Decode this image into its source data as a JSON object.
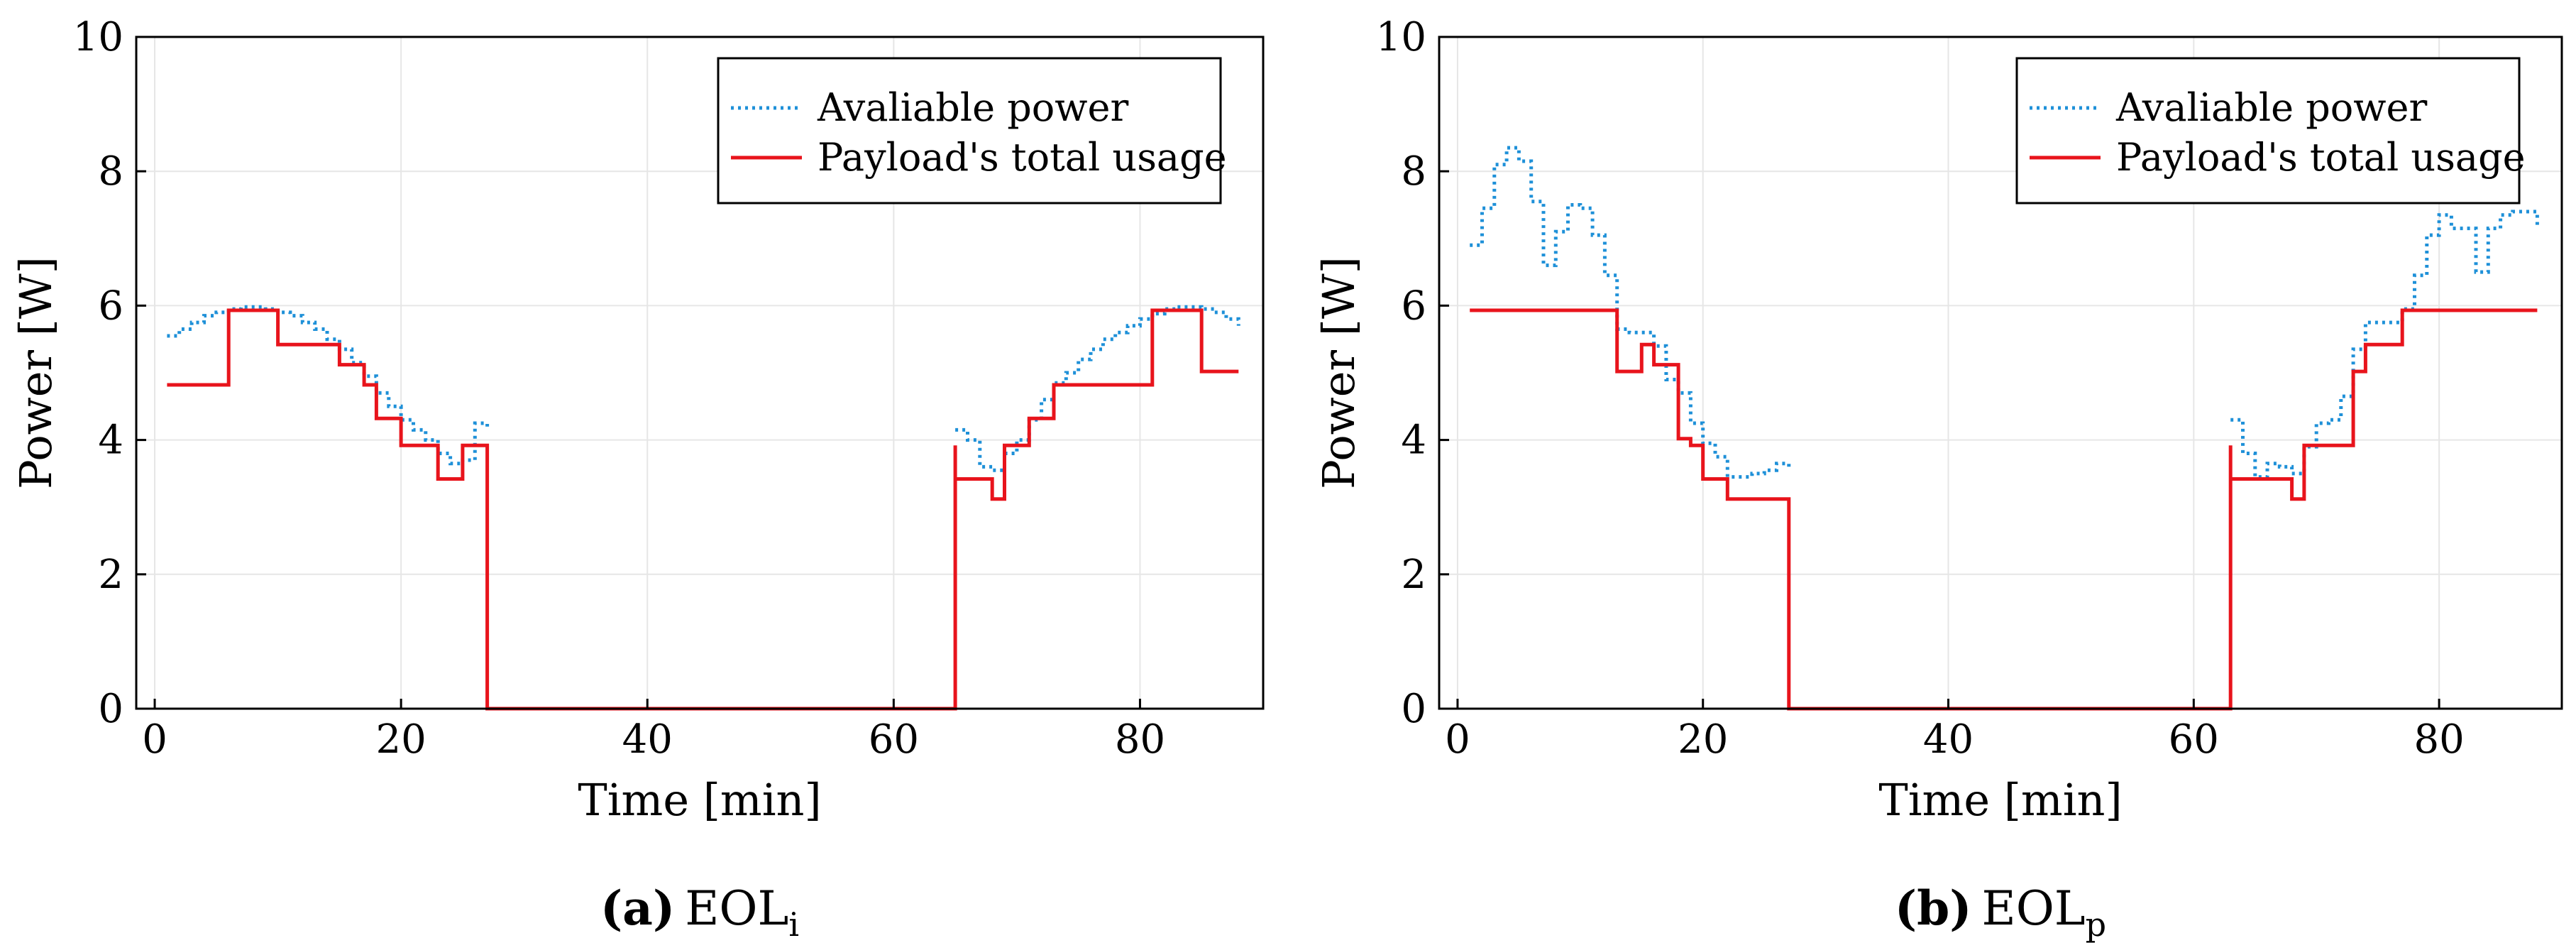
{
  "chart_data": [
    {
      "type": "line",
      "caption_label": "(a)",
      "caption_base": "EOL",
      "caption_sub": "i",
      "xlabel": "Time [min]",
      "ylabel": "Power [W]",
      "xlim": [
        -1.5,
        90
      ],
      "ylim": [
        0,
        10
      ],
      "xticks": [
        0,
        20,
        40,
        60,
        80
      ],
      "yticks": [
        0,
        2,
        4,
        6,
        8,
        10
      ],
      "grid": true,
      "legend_position": "top-right",
      "series": [
        {
          "name": "Avaliable power",
          "style": "dotted",
          "color": "#1e90d8",
          "x": [
            1,
            2,
            3,
            4,
            5,
            6,
            7,
            8,
            9,
            10,
            11,
            12,
            13,
            14,
            15,
            16,
            17,
            18,
            19,
            20,
            21,
            22,
            23,
            24,
            25,
            26,
            27,
            65,
            66,
            67,
            68,
            69,
            70,
            71,
            72,
            73,
            74,
            75,
            76,
            77,
            78,
            79,
            80,
            81,
            82,
            83,
            84,
            85,
            86,
            87,
            88
          ],
          "y": [
            5.55,
            5.65,
            5.75,
            5.85,
            5.9,
            5.95,
            5.98,
            5.98,
            5.95,
            5.9,
            5.85,
            5.75,
            5.65,
            5.5,
            5.35,
            5.15,
            4.95,
            4.7,
            4.5,
            4.3,
            4.15,
            4.0,
            3.8,
            3.65,
            3.7,
            4.25,
            4.2,
            4.15,
            4.0,
            3.6,
            3.55,
            3.8,
            4.0,
            4.3,
            4.6,
            4.85,
            5.0,
            5.2,
            5.35,
            5.5,
            5.6,
            5.7,
            5.8,
            5.88,
            5.95,
            5.98,
            5.98,
            5.95,
            5.9,
            5.8,
            5.7
          ]
        },
        {
          "name": "Payload's total usage",
          "style": "solid",
          "color": "#e8141c",
          "step": true,
          "x": [
            1,
            6,
            10,
            15,
            17,
            18,
            20,
            23,
            25,
            27,
            27,
            65,
            65,
            66,
            68,
            69,
            71,
            73,
            81,
            85,
            86,
            88
          ],
          "y": [
            4.82,
            5.93,
            5.42,
            5.12,
            4.82,
            4.32,
            3.92,
            3.42,
            3.92,
            0,
            0,
            3.92,
            3.42,
            3.42,
            3.12,
            3.92,
            4.32,
            4.82,
            5.93,
            5.02,
            5.02,
            5.02
          ]
        }
      ]
    },
    {
      "type": "line",
      "caption_label": "(b)",
      "caption_base": "EOL",
      "caption_sub": "p",
      "xlabel": "Time [min]",
      "ylabel": "Power [W]",
      "xlim": [
        -1.5,
        90
      ],
      "ylim": [
        0,
        10
      ],
      "xticks": [
        0,
        20,
        40,
        60,
        80
      ],
      "yticks": [
        0,
        2,
        4,
        6,
        8,
        10
      ],
      "grid": true,
      "legend_position": "top-right",
      "series": [
        {
          "name": "Avaliable power",
          "style": "dotted",
          "color": "#1e90d8",
          "x": [
            1,
            2,
            3,
            4,
            5,
            6,
            7,
            8,
            9,
            10,
            11,
            12,
            13,
            14,
            15,
            16,
            17,
            18,
            19,
            20,
            21,
            22,
            23,
            24,
            25,
            26,
            27,
            63,
            64,
            65,
            66,
            67,
            68,
            69,
            70,
            71,
            72,
            73,
            74,
            75,
            76,
            77,
            78,
            79,
            80,
            81,
            82,
            83,
            84,
            85,
            86,
            87,
            88
          ],
          "y": [
            6.9,
            7.45,
            8.1,
            8.35,
            8.15,
            7.55,
            6.6,
            7.1,
            7.5,
            7.45,
            7.05,
            6.45,
            5.65,
            5.6,
            5.6,
            5.4,
            4.9,
            4.7,
            4.25,
            3.95,
            3.75,
            3.45,
            3.45,
            3.5,
            3.55,
            3.65,
            3.6,
            4.3,
            3.8,
            3.45,
            3.65,
            3.6,
            3.5,
            3.9,
            4.25,
            4.3,
            4.65,
            5.35,
            5.75,
            5.75,
            5.75,
            5.95,
            6.45,
            7.05,
            7.35,
            7.15,
            7.15,
            6.5,
            7.15,
            7.35,
            7.4,
            7.4,
            7.2
          ]
        },
        {
          "name": "Payload's total usage",
          "style": "solid",
          "color": "#e8141c",
          "step": true,
          "x": [
            1,
            13,
            15,
            16,
            18,
            19,
            20,
            22,
            27,
            27,
            63,
            63,
            64,
            68,
            69,
            73,
            74,
            77,
            88
          ],
          "y": [
            5.93,
            5.02,
            5.42,
            5.12,
            4.02,
            3.92,
            3.42,
            3.12,
            0,
            0,
            3.92,
            3.42,
            3.42,
            3.12,
            3.92,
            5.02,
            5.42,
            5.93,
            5.93
          ]
        }
      ]
    }
  ]
}
